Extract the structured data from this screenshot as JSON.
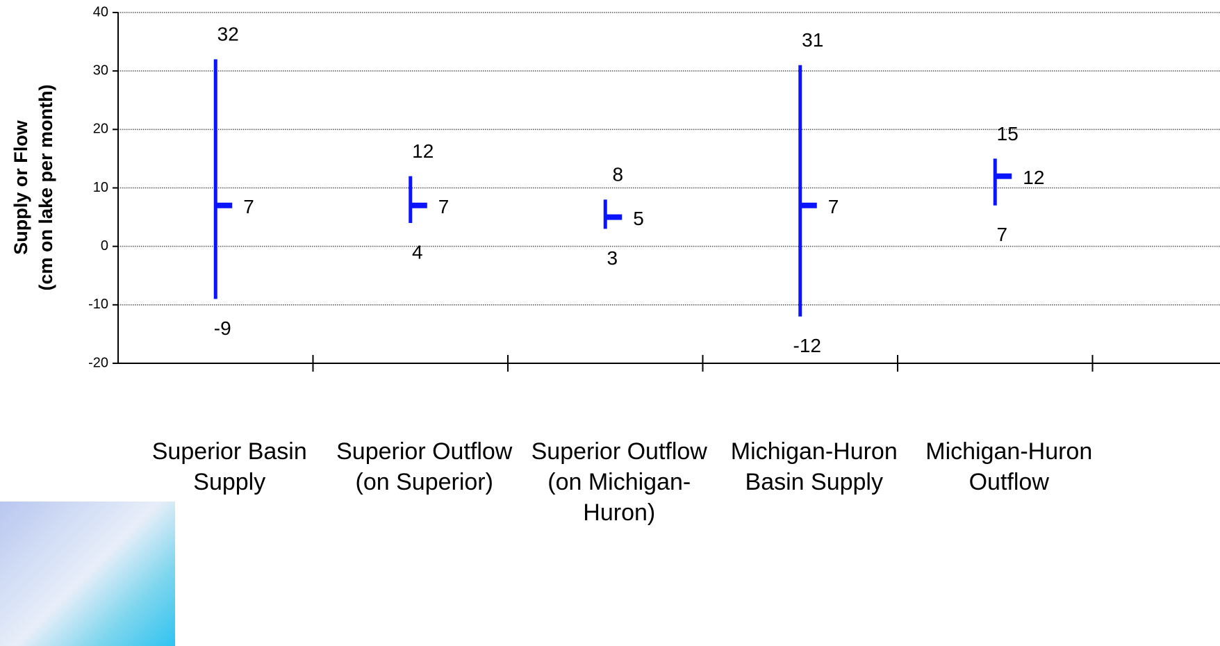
{
  "chart_data": {
    "type": "hilo",
    "ylabel": [
      "Supply or Flow",
      "(cm on lake per month)"
    ],
    "categories": [
      "Superior Basin Supply",
      "Superior Outflow (on Superior)",
      "Superior Outflow (on Michigan-Huron)",
      "Michigan-Huron Basin Supply",
      "Michigan-Huron Outflow"
    ],
    "high": [
      32,
      12,
      8,
      31,
      15
    ],
    "low": [
      -9,
      4,
      3,
      -12,
      7
    ],
    "mean": [
      7,
      7,
      5,
      7,
      12
    ],
    "color": "#0a14ff",
    "ylim": [
      -20,
      40
    ],
    "yticks": [
      -20,
      -10,
      0,
      10,
      20,
      30,
      40
    ],
    "grid": true
  }
}
